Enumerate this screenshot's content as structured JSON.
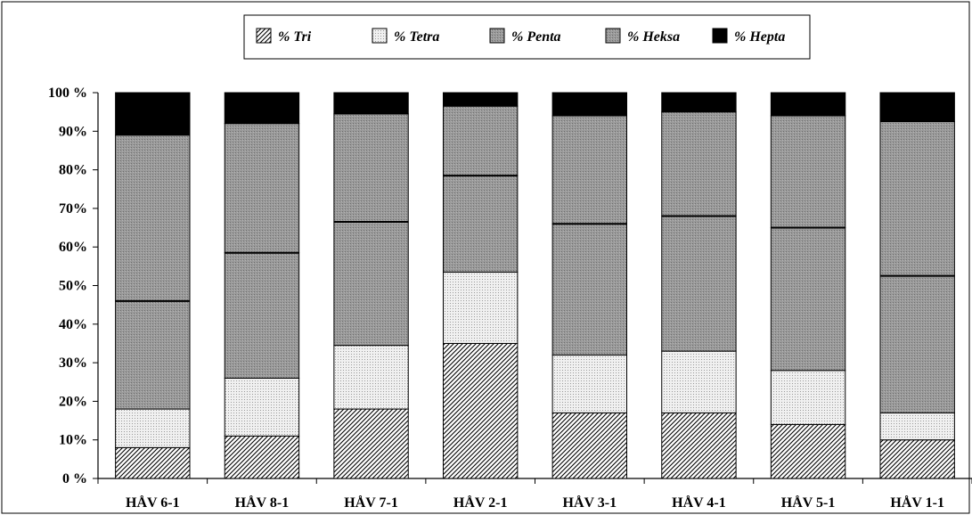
{
  "chart_data": {
    "type": "bar",
    "stacked": true,
    "percent": true,
    "categories": [
      "HÅV 6-1",
      "HÅV 8-1",
      "HÅV 7-1",
      "HÅV 2-1",
      "HÅV 3-1",
      "HÅV 4-1",
      "HÅV 5-1",
      "HÅV 1-1"
    ],
    "series": [
      {
        "name": "% Tri",
        "pattern": "hatch",
        "color": "#ffffff",
        "values": [
          8,
          11,
          18,
          35,
          17,
          17,
          14,
          10
        ]
      },
      {
        "name": "% Tetra",
        "pattern": "dots",
        "color": "#ececec",
        "values": [
          10,
          15,
          16.5,
          18.5,
          15,
          16,
          14,
          7
        ]
      },
      {
        "name": "% Penta",
        "pattern": "grey",
        "color": "#959595",
        "values": [
          28,
          32.5,
          32,
          25,
          34,
          35,
          37,
          35.5
        ]
      },
      {
        "name": "% Heksa",
        "pattern": "grey",
        "color": "#959595",
        "values": [
          43,
          33.5,
          28,
          18,
          28,
          27,
          29,
          40
        ]
      },
      {
        "name": "% Hepta",
        "pattern": "solid",
        "color": "#000000",
        "values": [
          11,
          8,
          5.5,
          3.5,
          6,
          5,
          6,
          7.5
        ]
      }
    ],
    "yticks": [
      "0 %",
      "10%",
      "20%",
      "30%",
      "40%",
      "50%",
      "60%",
      "70%",
      "80%",
      "90%",
      "100 %"
    ],
    "ylim": [
      0,
      100
    ],
    "legend_position": "top-center",
    "title": "",
    "xlabel": "",
    "ylabel": ""
  }
}
